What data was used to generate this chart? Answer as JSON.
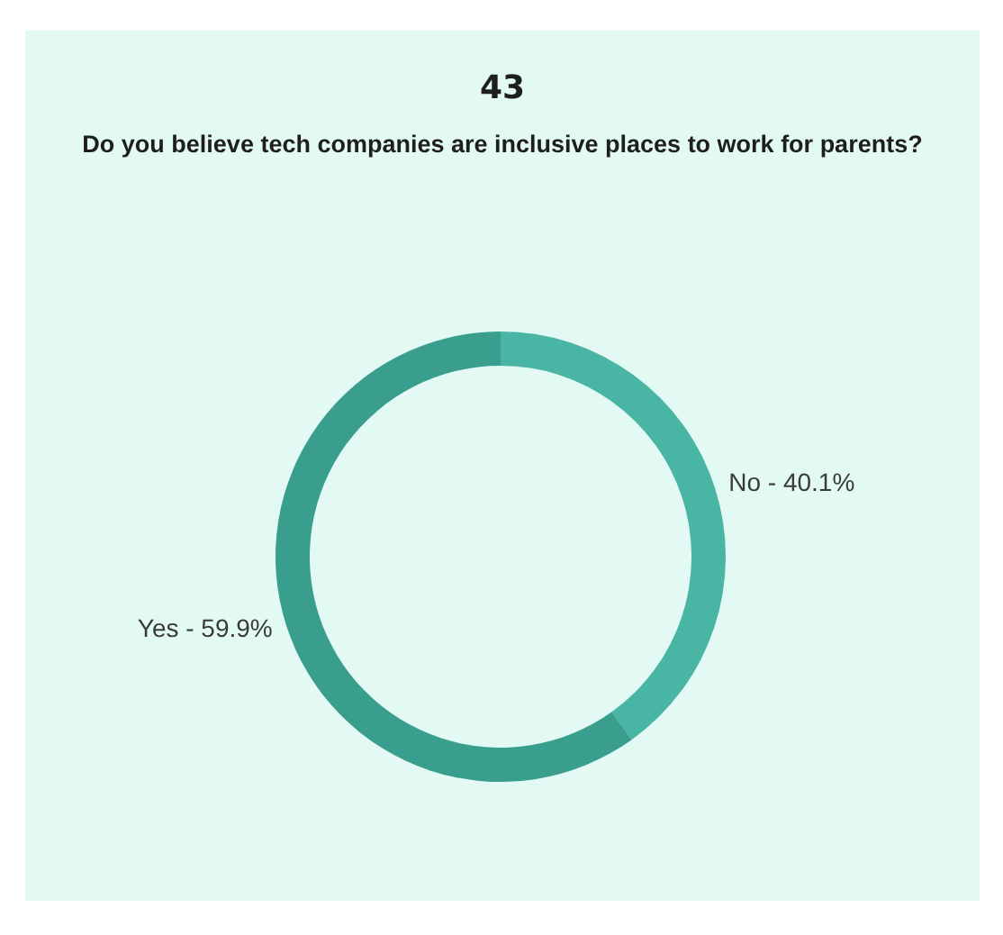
{
  "chart_data": {
    "type": "donut",
    "title": "43",
    "subtitle": "Do you believe tech companies are inclusive places to work for parents?",
    "categories": [
      "No",
      "Yes"
    ],
    "values": [
      40.1,
      59.9
    ],
    "colors": [
      "#48b5a5",
      "#3a9e8e"
    ],
    "value_labels": [
      "40.1%",
      "59.9%"
    ],
    "legend": false
  }
}
